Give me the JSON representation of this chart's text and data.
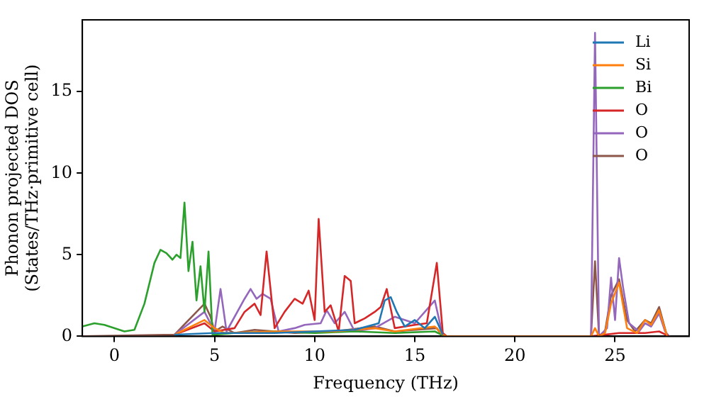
{
  "chart_data": {
    "type": "line",
    "xlabel": "Frequency (THz)",
    "ylabel": "Phonon projected DOS\n(States/THz·primitive cell)",
    "xlim": [
      -1.6,
      28.7
    ],
    "ylim": [
      0,
      19.4
    ],
    "xticks": [
      0,
      5,
      10,
      15,
      20,
      25
    ],
    "yticks": [
      0,
      5,
      10,
      15
    ],
    "grid": false,
    "legend": "top right",
    "marker": "none",
    "line_style": "solid",
    "series": [
      {
        "name": "Li",
        "color": "#1f77b4",
        "x": [
          3,
          5,
          8,
          10,
          12,
          13.2,
          13.5,
          13.8,
          14.1,
          14.5,
          15,
          15.5,
          16,
          16.4
        ],
        "values": [
          0.1,
          0.2,
          0.2,
          0.3,
          0.4,
          0.8,
          2.2,
          2.4,
          1.5,
          0.6,
          1.0,
          0.5,
          1.2,
          0.1
        ]
      },
      {
        "name": "Si",
        "color": "#ff7f0e",
        "x": [
          3,
          4.5,
          5,
          5.5,
          8,
          11,
          13,
          14,
          16,
          16.4,
          16.6,
          23.8,
          24.0,
          24.2,
          24.5,
          24.8,
          25.2,
          25.6,
          26.1,
          26.5,
          26.8,
          27.2,
          27.6
        ],
        "values": [
          0.1,
          1.0,
          0.5,
          0.2,
          0.3,
          0.3,
          0.5,
          0.3,
          0.6,
          0.1,
          0,
          0,
          0.5,
          0,
          0.2,
          2.0,
          3.3,
          0.5,
          0.2,
          1.0,
          0.7,
          1.6,
          0
        ]
      },
      {
        "name": "Bi",
        "color": "#2ca02c",
        "x": [
          -1.6,
          -1,
          -0.5,
          0.5,
          1,
          1.5,
          2,
          2.3,
          2.6,
          2.9,
          3.1,
          3.3,
          3.5,
          3.7,
          3.9,
          4.1,
          4.3,
          4.5,
          4.7,
          4.9,
          6,
          8,
          10,
          12,
          14,
          16,
          16.5
        ],
        "values": [
          0.6,
          0.8,
          0.7,
          0.3,
          0.4,
          2.0,
          4.5,
          5.3,
          5.1,
          4.7,
          5.0,
          4.8,
          8.2,
          4.0,
          5.8,
          2.2,
          4.3,
          1.5,
          5.2,
          0.1,
          0.2,
          0.3,
          0.2,
          0.3,
          0.2,
          0.3,
          0
        ]
      },
      {
        "name": "O",
        "color": "#d62728",
        "x": [
          3,
          4.5,
          5,
          6,
          6.5,
          7,
          7.3,
          7.6,
          8,
          8.5,
          9,
          9.4,
          9.7,
          10,
          10.2,
          10.5,
          10.8,
          11.2,
          11.5,
          11.8,
          12,
          12.5,
          13,
          13.3,
          13.6,
          14,
          15,
          15.6,
          16.1,
          16.4,
          16.6,
          23.8,
          24.5,
          25.2,
          26.5,
          27.2,
          27.7
        ],
        "values": [
          0.1,
          0.8,
          0.3,
          0.5,
          1.5,
          2.0,
          1.3,
          5.2,
          0.5,
          1.5,
          2.3,
          2.0,
          2.8,
          1.0,
          7.2,
          1.5,
          1.9,
          0.3,
          3.7,
          3.4,
          0.8,
          1.1,
          1.5,
          1.8,
          2.9,
          0.5,
          0.7,
          0.8,
          4.5,
          0.2,
          0,
          0,
          0.1,
          0.2,
          0.2,
          0.3,
          0
        ]
      },
      {
        "name": "O",
        "color": "#9467bd",
        "x": [
          3,
          4.5,
          5,
          5.3,
          5.6,
          6.5,
          6.8,
          7.1,
          7.4,
          7.8,
          8.2,
          9,
          9.5,
          10.3,
          10.6,
          11,
          11.5,
          12,
          13,
          14,
          15,
          16,
          16.4,
          23.8,
          24.0,
          24.2,
          24.6,
          24.8,
          25,
          25.2,
          25.4,
          25.7,
          26.2,
          26.5,
          26.8,
          27.2,
          27.5,
          27.7
        ],
        "values": [
          0.1,
          1.5,
          0.3,
          2.9,
          0.3,
          2.3,
          2.9,
          2.3,
          2.6,
          2.3,
          0.3,
          0.5,
          0.7,
          0.8,
          1.6,
          0.8,
          1.5,
          0.3,
          0.5,
          1.2,
          0.8,
          2.2,
          0,
          0,
          18.6,
          0,
          0.5,
          3.6,
          1.0,
          4.8,
          3.0,
          0.8,
          0.3,
          0.8,
          0.6,
          1.4,
          0.3,
          0
        ]
      },
      {
        "name": "O",
        "color": "#8c564b",
        "x": [
          -1.6,
          3,
          4.5,
          4.8,
          5,
          5.4,
          6,
          7,
          9,
          11,
          13,
          14,
          16.1,
          16.4,
          23.8,
          24.0,
          24.2,
          24.5,
          24.8,
          25.2,
          25.6,
          26,
          26.5,
          26.8,
          27.2,
          27.6
        ],
        "values": [
          0,
          0.1,
          2.0,
          1.2,
          0.3,
          0.6,
          0.2,
          0.4,
          0.2,
          0.3,
          0.6,
          0.3,
          0.5,
          0,
          0,
          4.6,
          0,
          0.3,
          2.5,
          3.5,
          1.0,
          0.3,
          1.0,
          0.8,
          1.8,
          0
        ]
      }
    ]
  }
}
